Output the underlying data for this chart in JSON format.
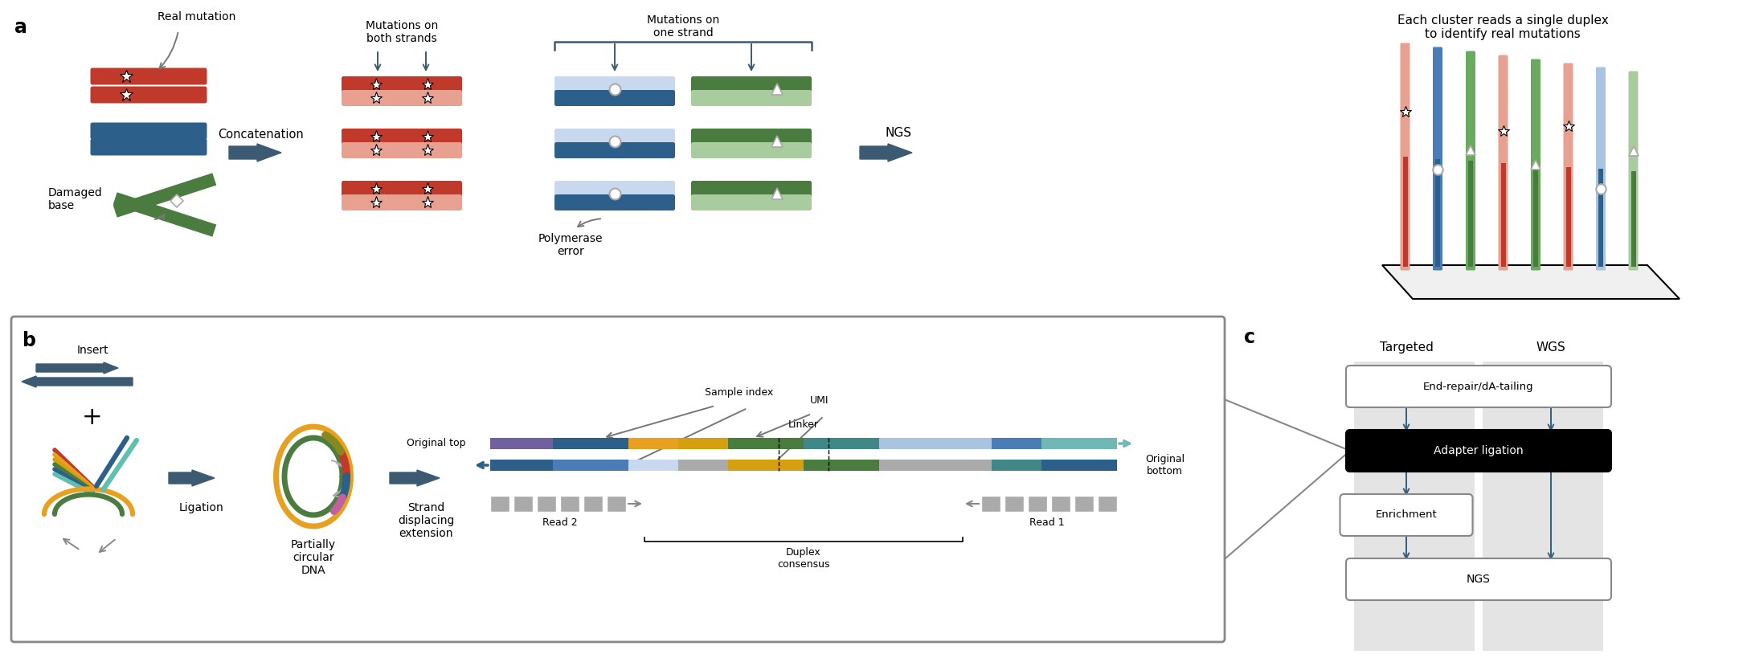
{
  "panel_a_label": "a",
  "panel_b_label": "b",
  "panel_c_label": "c",
  "fig_width": 21.69,
  "fig_height": 8.14,
  "bg_color": "#ffffff",
  "colors": {
    "red_dark": "#c0392b",
    "red_light": "#e8a090",
    "red_mid": "#d45a50",
    "blue_dark": "#2c5f8a",
    "blue_medium": "#4a7db5",
    "blue_light": "#a8c4e0",
    "blue_vlight": "#c8d8ee",
    "green_dark": "#4a7c3f",
    "green_medium": "#6aaa5e",
    "green_light": "#a8cc9e",
    "arrow_dark": "#3d5a73",
    "gray_arrow": "#888888",
    "gray_light": "#aaaaaa",
    "black": "#000000",
    "white": "#ffffff",
    "orange": "#e8a020",
    "yellow": "#d4a010",
    "purple": "#7060a0",
    "teal": "#408888",
    "teal_light": "#70b8b8",
    "pink_light": "#f0a0b0",
    "cyan": "#60c0b0",
    "magenta": "#c060a0",
    "olive": "#888820"
  },
  "texts": {
    "real_mutation": "Real mutation",
    "damaged_base": "Damaged\nbase",
    "concatenation": "Concatenation",
    "mutations_both": "Mutations on\nboth strands",
    "mutations_one": "Mutations on\none strand",
    "polymerase_error": "Polymerase\nerror",
    "ngs": "NGS",
    "each_cluster": "Each cluster reads a single duplex\nto identify real mutations",
    "insert": "Insert",
    "ligation": "Ligation",
    "partially_circular": "Partially\ncircular\nDNA",
    "strand_displacing": "Strand\ndisplacing\nextension",
    "original_top": "Original top",
    "original_bottom": "Original\nbottom",
    "sample_index": "Sample index",
    "umi": "UMI",
    "linker": "Linker",
    "read1": "Read 1",
    "read2": "Read 2",
    "duplex_consensus": "Duplex\nconsensus",
    "targeted": "Targeted",
    "wgs": "WGS",
    "end_repair": "End-repair/dA-tailing",
    "adapter_ligation": "Adapter ligation",
    "enrichment": "Enrichment",
    "ngs_c": "NGS"
  }
}
